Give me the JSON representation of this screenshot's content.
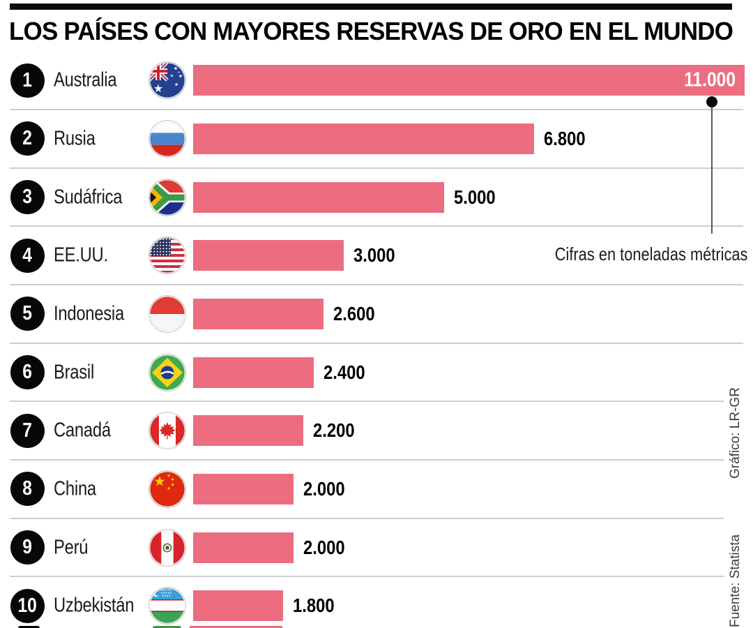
{
  "header": {
    "title": "LOS PAÍSES CON MAYORES RESERVAS DE ORO EN EL MUNDO"
  },
  "annotation": {
    "text": "Cifras en toneladas métricas"
  },
  "credits": {
    "graphic": "Gráfico: LR-GR",
    "source": "Fuente: Statista"
  },
  "colors": {
    "bar": "#eb6d7f",
    "separator": "#cdcdcd",
    "topbar": "#0d0d0d",
    "rank_circle": "#070707",
    "value_text": "#000000",
    "value_text_inside": "#ffffff",
    "credit_text": "#3c3c3c"
  },
  "chart_data": {
    "type": "bar",
    "orientation": "horizontal",
    "title": "LOS PAÍSES CON MAYORES RESERVAS DE ORO EN EL MUNDO",
    "unit_note": "Cifras en toneladas métricas",
    "ranks": [
      1,
      2,
      3,
      4,
      5,
      6,
      7,
      8,
      9,
      10
    ],
    "categories": [
      "Australia",
      "Rusia",
      "Sudáfrica",
      "EE.UU.",
      "Indonesia",
      "Brasil",
      "Canadá",
      "China",
      "Perú",
      "Uzbekistán"
    ],
    "values": [
      11000,
      6800,
      5000,
      3000,
      2600,
      2400,
      2200,
      2000,
      2000,
      1800
    ],
    "value_labels": [
      "11.000",
      "6.800",
      "5.000",
      "3.000",
      "2.600",
      "2.400",
      "2.200",
      "2.000",
      "2.000",
      "1.800"
    ],
    "flags": [
      "flag-australia",
      "flag-russia",
      "flag-south-africa",
      "flag-usa",
      "flag-indonesia",
      "flag-brazil",
      "flag-canada",
      "flag-china",
      "flag-peru",
      "flag-uzbekistan"
    ],
    "xlim": [
      0,
      11000
    ],
    "value_label_inside_bar_for_rank": 1,
    "annotation_target_rank": 1,
    "legend": "none",
    "grid": "off",
    "partial_next_row": {
      "note": "top sliver of an 11th row visible at bottom edge",
      "flag": "flag-green-partial",
      "visible_elements": [
        "rank-circle-sliver",
        "green-flag-sliver",
        "bar-sliver"
      ]
    }
  }
}
